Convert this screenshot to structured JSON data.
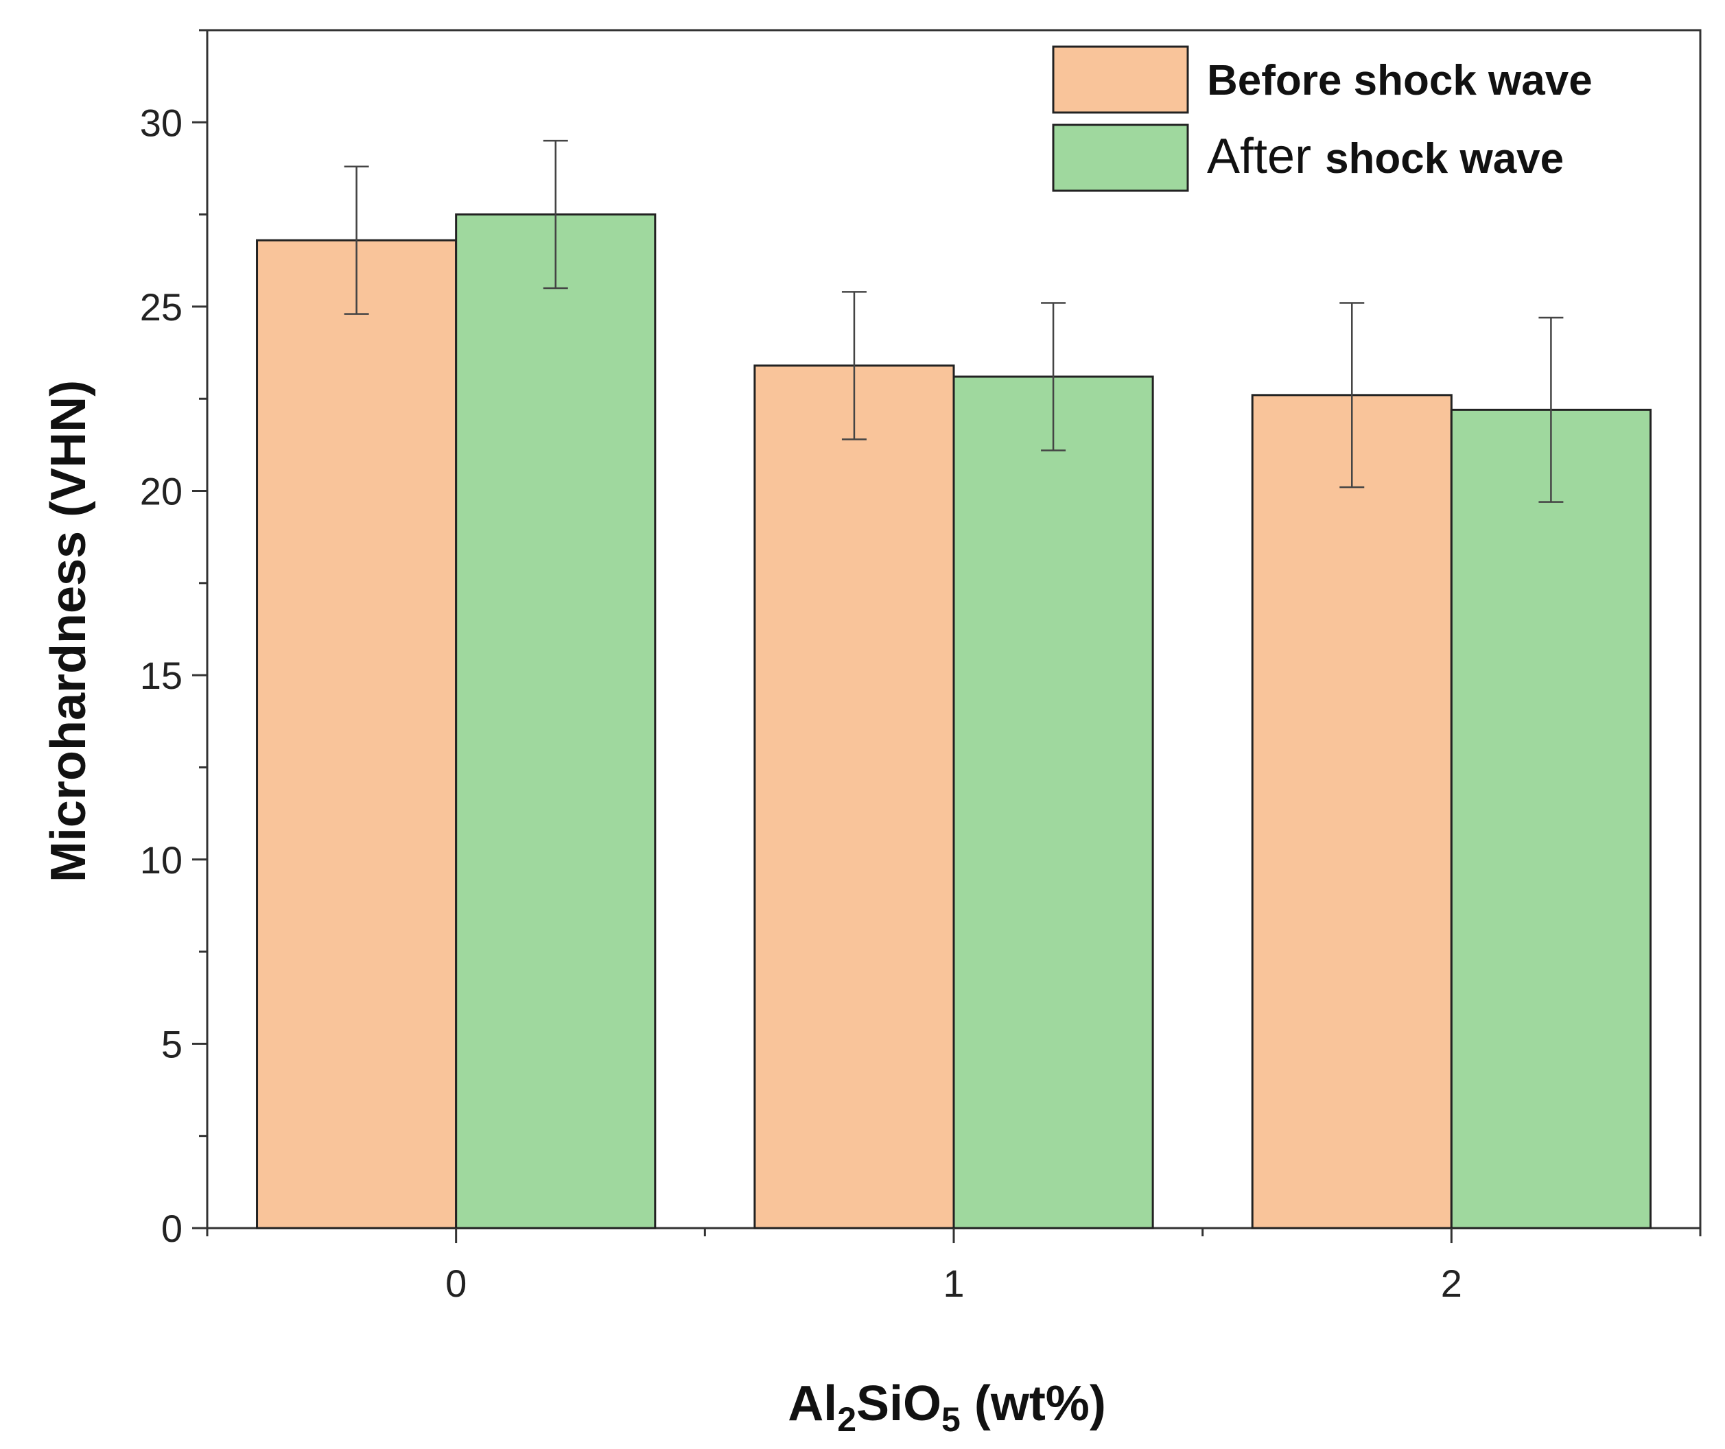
{
  "chart_data": {
    "type": "bar",
    "title": "",
    "xlabel": {
      "main": "Al",
      "sub1": "2",
      "mid": "SiO",
      "sub2": "5",
      "tail": " (wt%)"
    },
    "ylabel": "Microhardness (VHN)",
    "categories": [
      "0",
      "1",
      "2"
    ],
    "ylim": [
      0,
      32.5
    ],
    "yticks": [
      0,
      5,
      10,
      15,
      20,
      25,
      30
    ],
    "series": [
      {
        "name": "Before shock wave",
        "legend_bold": "Before shock wave",
        "legend_plain": "",
        "color": "#F9C49A",
        "values": [
          26.8,
          23.4,
          22.6
        ],
        "errors": [
          2.0,
          2.0,
          2.5
        ]
      },
      {
        "name": "After shock wave",
        "legend_plain": "After ",
        "legend_bold": "shock wave",
        "color": "#9FD89E",
        "values": [
          27.5,
          23.1,
          22.2
        ],
        "errors": [
          2.0,
          2.0,
          2.5
        ]
      }
    ],
    "legend_position": "top-right"
  }
}
